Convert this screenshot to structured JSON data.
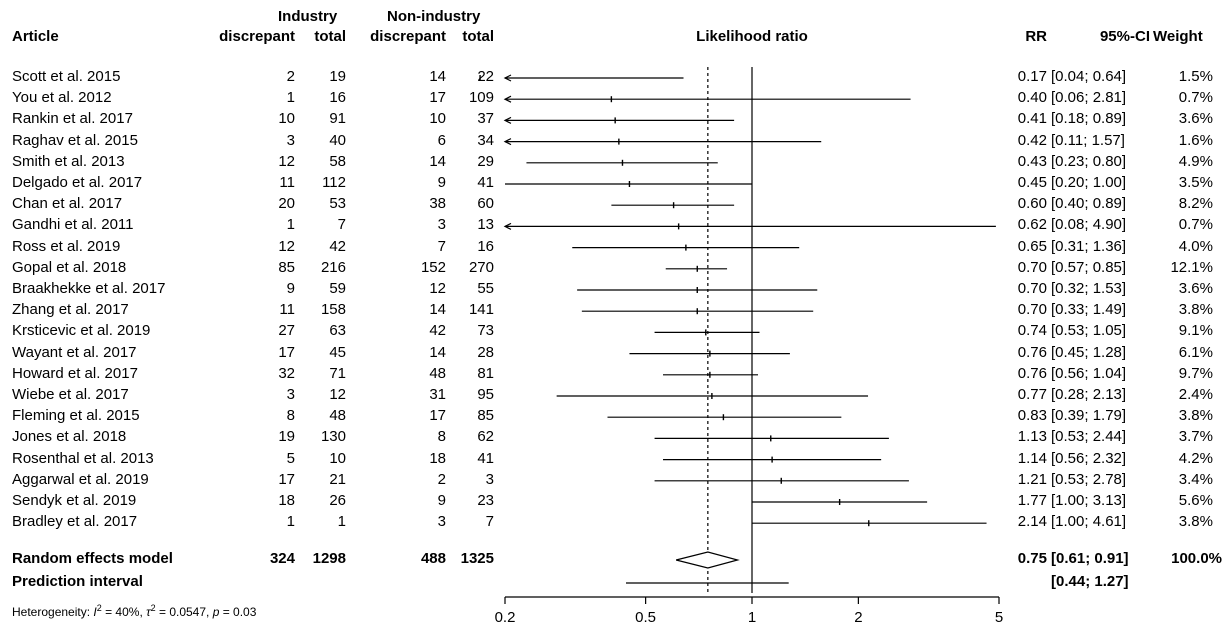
{
  "headers": {
    "article": "Article",
    "industry": "Industry",
    "non_industry": "Non-industry",
    "discrepant": "discrepant",
    "total": "total",
    "likelihood": "Likelihood ratio",
    "rr": "RR",
    "ci": "95%-CI",
    "weight": "Weight"
  },
  "chart_data": {
    "type": "forest",
    "xscale": "log",
    "xlim": [
      0.2,
      5
    ],
    "xticks": [
      0.2,
      0.5,
      1,
      2,
      5
    ],
    "xtick_labels": [
      "0.2",
      "0.5",
      "1",
      "2",
      "5"
    ],
    "null_line": 1,
    "pooled_line": 0.75,
    "studies": [
      {
        "article": "Scott et al. 2015",
        "ind_disc": "2",
        "ind_total": "19",
        "non_disc": "14",
        "non_total": "22",
        "rr": 0.17,
        "lo": 0.04,
        "hi": 0.64,
        "rr_text": "0.17",
        "ci_text": "[0.04; 0.64]",
        "weight": "1.5%"
      },
      {
        "article": "You et al. 2012",
        "ind_disc": "1",
        "ind_total": "16",
        "non_disc": "17",
        "non_total": "109",
        "rr": 0.4,
        "lo": 0.06,
        "hi": 2.81,
        "rr_text": "0.40",
        "ci_text": "[0.06; 2.81]",
        "weight": "0.7%"
      },
      {
        "article": "Rankin et al. 2017",
        "ind_disc": "10",
        "ind_total": "91",
        "non_disc": "10",
        "non_total": "37",
        "rr": 0.41,
        "lo": 0.18,
        "hi": 0.89,
        "rr_text": "0.41",
        "ci_text": "[0.18; 0.89]",
        "weight": "3.6%"
      },
      {
        "article": "Raghav et al. 2015",
        "ind_disc": "3",
        "ind_total": "40",
        "non_disc": "6",
        "non_total": "34",
        "rr": 0.42,
        "lo": 0.11,
        "hi": 1.57,
        "rr_text": "0.42",
        "ci_text": "[0.11; 1.57]",
        "weight": "1.6%"
      },
      {
        "article": "Smith et al. 2013",
        "ind_disc": "12",
        "ind_total": "58",
        "non_disc": "14",
        "non_total": "29",
        "rr": 0.43,
        "lo": 0.23,
        "hi": 0.8,
        "rr_text": "0.43",
        "ci_text": "[0.23; 0.80]",
        "weight": "4.9%"
      },
      {
        "article": "Delgado et al. 2017",
        "ind_disc": "11",
        "ind_total": "112",
        "non_disc": "9",
        "non_total": "41",
        "rr": 0.45,
        "lo": 0.2,
        "hi": 1.0,
        "rr_text": "0.45",
        "ci_text": "[0.20; 1.00]",
        "weight": "3.5%"
      },
      {
        "article": "Chan et al. 2017",
        "ind_disc": "20",
        "ind_total": "53",
        "non_disc": "38",
        "non_total": "60",
        "rr": 0.6,
        "lo": 0.4,
        "hi": 0.89,
        "rr_text": "0.60",
        "ci_text": "[0.40; 0.89]",
        "weight": "8.2%"
      },
      {
        "article": "Gandhi et al. 2011",
        "ind_disc": "1",
        "ind_total": "7",
        "non_disc": "3",
        "non_total": "13",
        "rr": 0.62,
        "lo": 0.08,
        "hi": 4.9,
        "rr_text": "0.62",
        "ci_text": "[0.08; 4.90]",
        "weight": "0.7%"
      },
      {
        "article": "Ross et al. 2019",
        "ind_disc": "12",
        "ind_total": "42",
        "non_disc": "7",
        "non_total": "16",
        "rr": 0.65,
        "lo": 0.31,
        "hi": 1.36,
        "rr_text": "0.65",
        "ci_text": "[0.31; 1.36]",
        "weight": "4.0%"
      },
      {
        "article": "Gopal et al. 2018",
        "ind_disc": "85",
        "ind_total": "216",
        "non_disc": "152",
        "non_total": "270",
        "rr": 0.7,
        "lo": 0.57,
        "hi": 0.85,
        "rr_text": "0.70",
        "ci_text": "[0.57; 0.85]",
        "weight": "12.1%"
      },
      {
        "article": "Braakhekke et al. 2017",
        "ind_disc": "9",
        "ind_total": "59",
        "non_disc": "12",
        "non_total": "55",
        "rr": 0.7,
        "lo": 0.32,
        "hi": 1.53,
        "rr_text": "0.70",
        "ci_text": "[0.32; 1.53]",
        "weight": "3.6%"
      },
      {
        "article": "Zhang et al. 2017",
        "ind_disc": "11",
        "ind_total": "158",
        "non_disc": "14",
        "non_total": "141",
        "rr": 0.7,
        "lo": 0.33,
        "hi": 1.49,
        "rr_text": "0.70",
        "ci_text": "[0.33; 1.49]",
        "weight": "3.8%"
      },
      {
        "article": "Krsticevic et al. 2019",
        "ind_disc": "27",
        "ind_total": "63",
        "non_disc": "42",
        "non_total": "73",
        "rr": 0.74,
        "lo": 0.53,
        "hi": 1.05,
        "rr_text": "0.74",
        "ci_text": "[0.53; 1.05]",
        "weight": "9.1%"
      },
      {
        "article": "Wayant et al. 2017",
        "ind_disc": "17",
        "ind_total": "45",
        "non_disc": "14",
        "non_total": "28",
        "rr": 0.76,
        "lo": 0.45,
        "hi": 1.28,
        "rr_text": "0.76",
        "ci_text": "[0.45; 1.28]",
        "weight": "6.1%"
      },
      {
        "article": "Howard et al. 2017",
        "ind_disc": "32",
        "ind_total": "71",
        "non_disc": "48",
        "non_total": "81",
        "rr": 0.76,
        "lo": 0.56,
        "hi": 1.04,
        "rr_text": "0.76",
        "ci_text": "[0.56; 1.04]",
        "weight": "9.7%"
      },
      {
        "article": "Wiebe et al. 2017",
        "ind_disc": "3",
        "ind_total": "12",
        "non_disc": "31",
        "non_total": "95",
        "rr": 0.77,
        "lo": 0.28,
        "hi": 2.13,
        "rr_text": "0.77",
        "ci_text": "[0.28; 2.13]",
        "weight": "2.4%"
      },
      {
        "article": "Fleming et al. 2015",
        "ind_disc": "8",
        "ind_total": "48",
        "non_disc": "17",
        "non_total": "85",
        "rr": 0.83,
        "lo": 0.39,
        "hi": 1.79,
        "rr_text": "0.83",
        "ci_text": "[0.39; 1.79]",
        "weight": "3.8%"
      },
      {
        "article": "Jones et al. 2018",
        "ind_disc": "19",
        "ind_total": "130",
        "non_disc": "8",
        "non_total": "62",
        "rr": 1.13,
        "lo": 0.53,
        "hi": 2.44,
        "rr_text": "1.13",
        "ci_text": "[0.53; 2.44]",
        "weight": "3.7%"
      },
      {
        "article": "Rosenthal et al. 2013",
        "ind_disc": "5",
        "ind_total": "10",
        "non_disc": "18",
        "non_total": "41",
        "rr": 1.14,
        "lo": 0.56,
        "hi": 2.32,
        "rr_text": "1.14",
        "ci_text": "[0.56; 2.32]",
        "weight": "4.2%"
      },
      {
        "article": "Aggarwal et al. 2019",
        "ind_disc": "17",
        "ind_total": "21",
        "non_disc": "2",
        "non_total": "3",
        "rr": 1.21,
        "lo": 0.53,
        "hi": 2.78,
        "rr_text": "1.21",
        "ci_text": "[0.53; 2.78]",
        "weight": "3.4%"
      },
      {
        "article": "Sendyk et al. 2019",
        "ind_disc": "18",
        "ind_total": "26",
        "non_disc": "9",
        "non_total": "23",
        "rr": 1.77,
        "lo": 1.0,
        "hi": 3.13,
        "rr_text": "1.77",
        "ci_text": "[1.00; 3.13]",
        "weight": "5.6%"
      },
      {
        "article": "Bradley et al. 2017",
        "ind_disc": "1",
        "ind_total": "1",
        "non_disc": "3",
        "non_total": "7",
        "rr": 2.14,
        "lo": 1.0,
        "hi": 4.61,
        "rr_text": "2.14",
        "ci_text": "[1.00; 4.61]",
        "weight": "3.8%"
      }
    ],
    "summary": {
      "label": "Random effects model",
      "ind_disc": "324",
      "ind_total": "1298",
      "non_disc": "488",
      "non_total": "1325",
      "rr": 0.75,
      "lo": 0.61,
      "hi": 0.91,
      "rr_text": "0.75",
      "ci_text": "[0.61; 0.91]",
      "weight": "100.0%"
    },
    "prediction": {
      "label": "Prediction interval",
      "lo": 0.44,
      "hi": 1.27,
      "ci_text": "[0.44; 1.27]"
    },
    "heterogeneity": {
      "prefix": "Heterogeneity: ",
      "i2": "I",
      "i2_value": " = 40%, ",
      "tau2": "τ",
      "tau2_value": " = 0.0547, ",
      "p": "p",
      "p_value": " = 0.03"
    }
  }
}
